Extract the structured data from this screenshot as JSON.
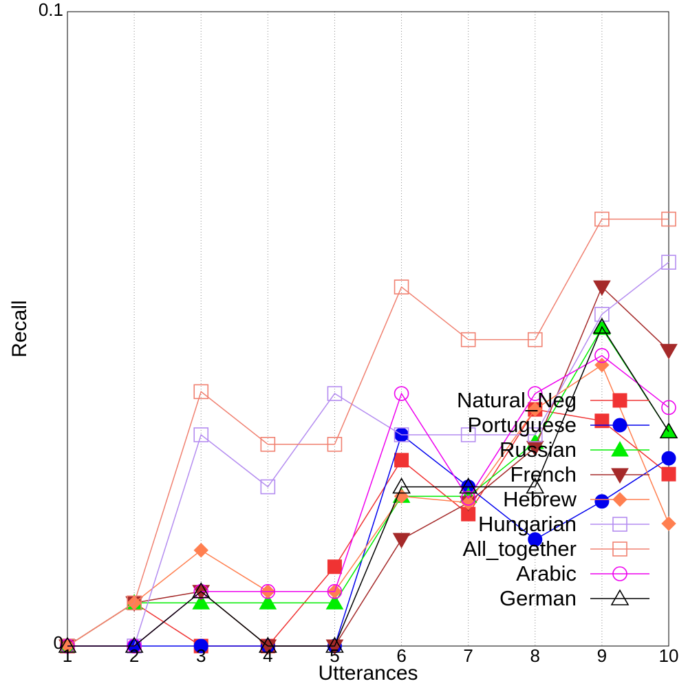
{
  "chart_data": {
    "type": "line",
    "xlabel": "Utterances",
    "ylabel": "Recall",
    "x": [
      1,
      2,
      3,
      4,
      5,
      6,
      7,
      8,
      9,
      10
    ],
    "x_tick_labels": [
      "1",
      "2",
      "3",
      "4",
      "5",
      "6",
      "7",
      "8",
      "9",
      "10"
    ],
    "y_tick_labels": [
      "0",
      "0.1"
    ],
    "ylim": [
      0,
      0.1
    ],
    "xlim": [
      1,
      10
    ],
    "grid": "vertical dotted",
    "legend_position": "bottom-right",
    "series": [
      {
        "name": "Natural_Neg",
        "color": "#f03333",
        "marker": "square-filled",
        "values": [
          0,
          0.0068,
          0,
          0,
          0.0125,
          0.0293,
          0.0208,
          0.0373,
          0.0355,
          0.0271
        ]
      },
      {
        "name": "Portuguese",
        "color": "#0000ee",
        "marker": "circle-filled",
        "values": [
          0,
          0,
          0,
          0,
          0,
          0.0333,
          0.0251,
          0.0168,
          0.0228,
          0.0296
        ]
      },
      {
        "name": "Russian",
        "color": "#00ee00",
        "marker": "triangle-up-filled",
        "values": [
          0,
          0.0068,
          0.0068,
          0.0068,
          0.0068,
          0.0236,
          0.0236,
          0.0321,
          0.0501,
          0.0338
        ]
      },
      {
        "name": "French",
        "color": "#a52a2a",
        "marker": "triangle-down-filled",
        "values": [
          0,
          0.0068,
          0.0086,
          0,
          0,
          0.0168,
          0.0226,
          0.0313,
          0.0566,
          0.0466
        ]
      },
      {
        "name": "Hebrew",
        "color": "#ff7f50",
        "marker": "diamond-filled",
        "values": [
          0,
          0.0068,
          0.0151,
          0.0086,
          0.0086,
          0.0236,
          0.0226,
          0.0373,
          0.0443,
          0.0193
        ]
      },
      {
        "name": "Hungarian",
        "color": "#b48cf0",
        "marker": "square-open",
        "values": [
          0,
          0,
          0.0333,
          0.0251,
          0.0398,
          0.0333,
          0.0333,
          0.0333,
          0.0523,
          0.0605
        ]
      },
      {
        "name": "All_together",
        "color": "#f08070",
        "marker": "square-open",
        "values": [
          0,
          0.0068,
          0.0401,
          0.0318,
          0.0318,
          0.0566,
          0.0483,
          0.0483,
          0.0673,
          0.0673
        ]
      },
      {
        "name": "Arabic",
        "color": "#ee00ee",
        "marker": "circle-open",
        "values": [
          0,
          0,
          0.0086,
          0.0086,
          0.0086,
          0.0398,
          0.0233,
          0.0398,
          0.0458,
          0.0376
        ]
      },
      {
        "name": "German",
        "color": "#000000",
        "marker": "triangle-up-open",
        "values": [
          0,
          0,
          0.0086,
          0,
          0,
          0.0251,
          0.0251,
          0.0251,
          0.0503,
          0.0338
        ]
      }
    ]
  }
}
